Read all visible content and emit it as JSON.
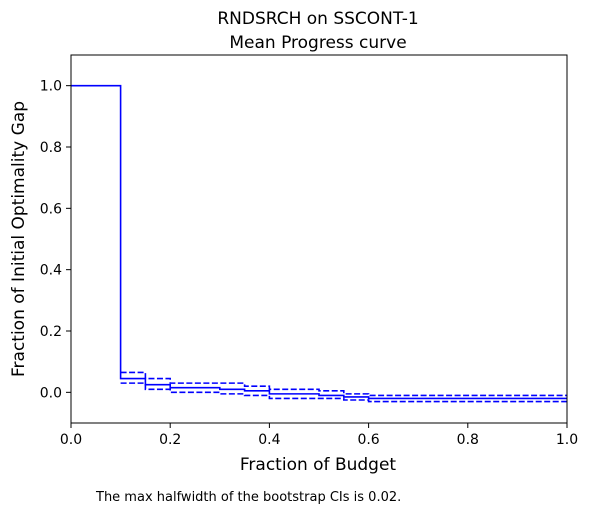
{
  "chart_data": {
    "type": "line",
    "title_lines": [
      "RNDSRCH on SSCONT-1",
      "Mean Progress curve"
    ],
    "xlabel": "Fraction of Budget",
    "ylabel": "Fraction of Initial Optimality Gap",
    "xlim": [
      0,
      1
    ],
    "ylim": [
      -0.1,
      1.1
    ],
    "xticks": [
      "0.0",
      "0.2",
      "0.4",
      "0.6",
      "0.8",
      "1.0"
    ],
    "yticks": [
      "0.0",
      "0.2",
      "0.4",
      "0.6",
      "0.8",
      "1.0"
    ],
    "step": "post",
    "grid": false,
    "color": "#0000ff",
    "series": [
      {
        "style": "solid",
        "x": [
          0,
          0.1,
          0.15,
          0.2,
          0.3,
          0.35,
          0.4,
          0.5,
          0.55,
          0.6,
          1.0
        ],
        "y": [
          1.0,
          0.045,
          0.025,
          0.015,
          0.01,
          0.005,
          -0.005,
          -0.01,
          -0.015,
          -0.02,
          -0.02
        ]
      },
      {
        "style": "dashed",
        "x": [
          0.1,
          0.15,
          0.2,
          0.3,
          0.35,
          0.4,
          0.5,
          0.55,
          0.6,
          1.0
        ],
        "y": [
          0.065,
          0.045,
          0.03,
          0.03,
          0.02,
          0.01,
          0.005,
          -0.005,
          -0.01,
          -0.01
        ]
      },
      {
        "style": "dashed",
        "x": [
          0.1,
          0.15,
          0.2,
          0.3,
          0.35,
          0.4,
          0.5,
          0.55,
          0.6,
          1.0
        ],
        "y": [
          0.03,
          0.01,
          0.0,
          -0.005,
          -0.01,
          -0.02,
          -0.02,
          -0.025,
          -0.03,
          -0.03
        ]
      }
    ],
    "footnote": "The max halfwidth of the bootstrap CIs is 0.02."
  }
}
